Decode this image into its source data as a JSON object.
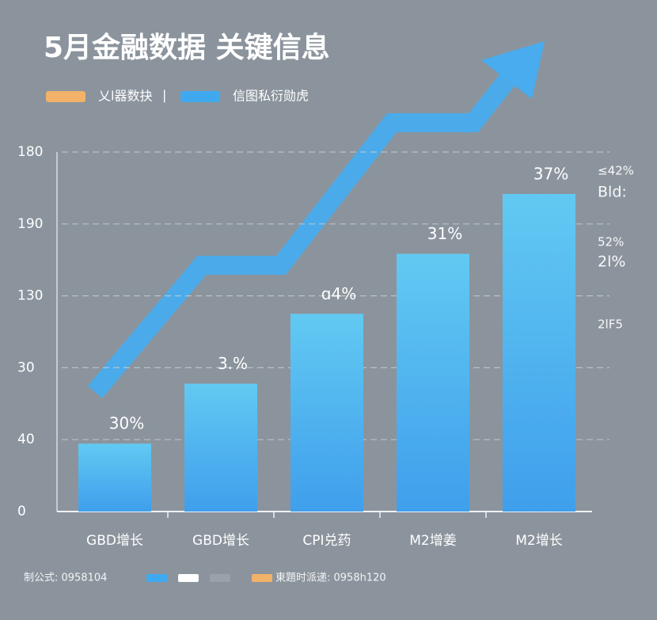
{
  "chart_data": {
    "type": "bar",
    "title": "5月金融数据 关键信息",
    "legend": [
      {
        "name": "乂l器数抉",
        "color": "#f2b26a"
      },
      {
        "name": "信图私衍勋虎",
        "color": "#3fa9f0"
      }
    ],
    "categories": [
      "GBD增长",
      "GBD增长",
      "CPI兑药",
      "M2增姜",
      "M2增长"
    ],
    "values": [
      34,
      64,
      99,
      129,
      159
    ],
    "annotations": [
      "30%",
      "3.%",
      "ɑ4%",
      "31%",
      "37%"
    ],
    "side_notes": [
      "≤42%",
      "Bld:",
      "52%",
      "2l%",
      "2lF5"
    ],
    "ylim": [
      0,
      180
    ],
    "yticks": [
      0,
      {
        "value": 36,
        "label": "40"
      },
      {
        "value": 72,
        "label": "30"
      },
      {
        "value": 108,
        "label": "130"
      },
      {
        "value": 144,
        "label": "190"
      },
      180
    ],
    "grid": true,
    "footer": [
      {
        "name": "制公式: 0958104",
        "colors": [
          "#3fa9f0",
          "#ffffff",
          "#9aa1a8"
        ]
      },
      {
        "name": "東題时派递: 0958h120",
        "colors": [
          "#f2b26a"
        ]
      }
    ]
  }
}
